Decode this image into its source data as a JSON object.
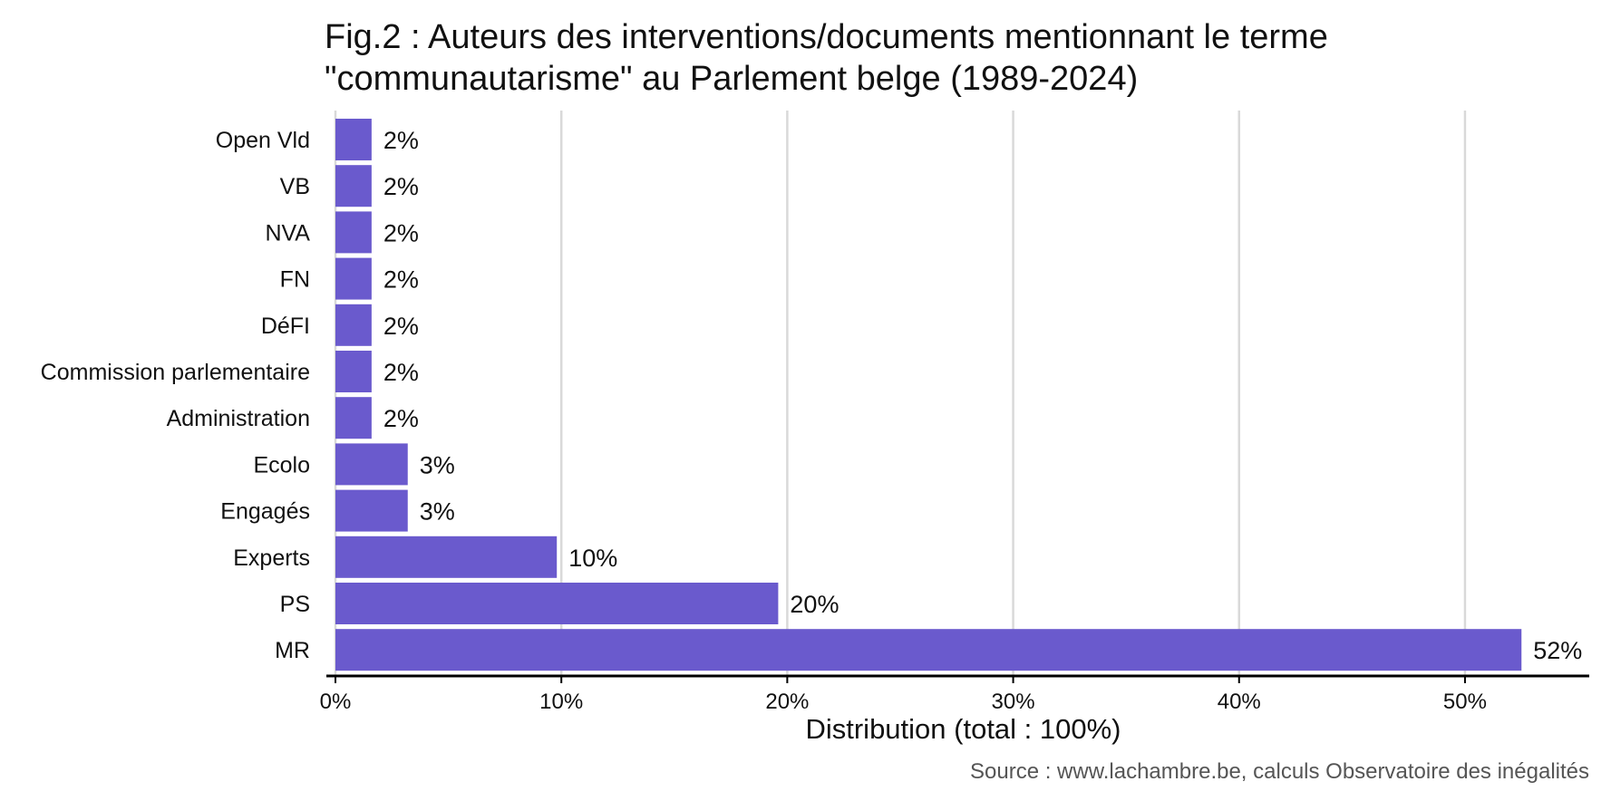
{
  "title_line1": "Fig.2 : Auteurs des interventions/documents mentionnant le terme",
  "title_line2": "\"communautarisme\" au Parlement belge (1989-2024)",
  "source": "Source : www.lachambre.be, calculs Observatoire des inégalités",
  "colors": {
    "bar": "#6a5acd",
    "grid": "#d9d9d9",
    "axis": "#000000"
  },
  "chart_data": {
    "type": "bar",
    "orientation": "horizontal",
    "categories": [
      "Open Vld",
      "VB",
      "NVA",
      "FN",
      "DéFI",
      "Commission parlementaire",
      "Administration",
      "Ecolo",
      "Engagés",
      "Experts",
      "PS",
      "MR"
    ],
    "values": [
      1.6,
      1.6,
      1.6,
      1.6,
      1.6,
      1.6,
      1.6,
      3.2,
      3.2,
      9.8,
      19.6,
      52.5
    ],
    "value_labels": [
      "2%",
      "2%",
      "2%",
      "2%",
      "2%",
      "2%",
      "2%",
      "3%",
      "3%",
      "10%",
      "20%",
      "52%"
    ],
    "xlabel": "Distribution (total : 100%)",
    "xticks": [
      0,
      10,
      20,
      30,
      40,
      50
    ],
    "xtick_labels": [
      "0%",
      "10%",
      "20%",
      "30%",
      "40%",
      "50%"
    ],
    "xlim": [
      0,
      55.5
    ],
    "grid": "vertical-major"
  }
}
